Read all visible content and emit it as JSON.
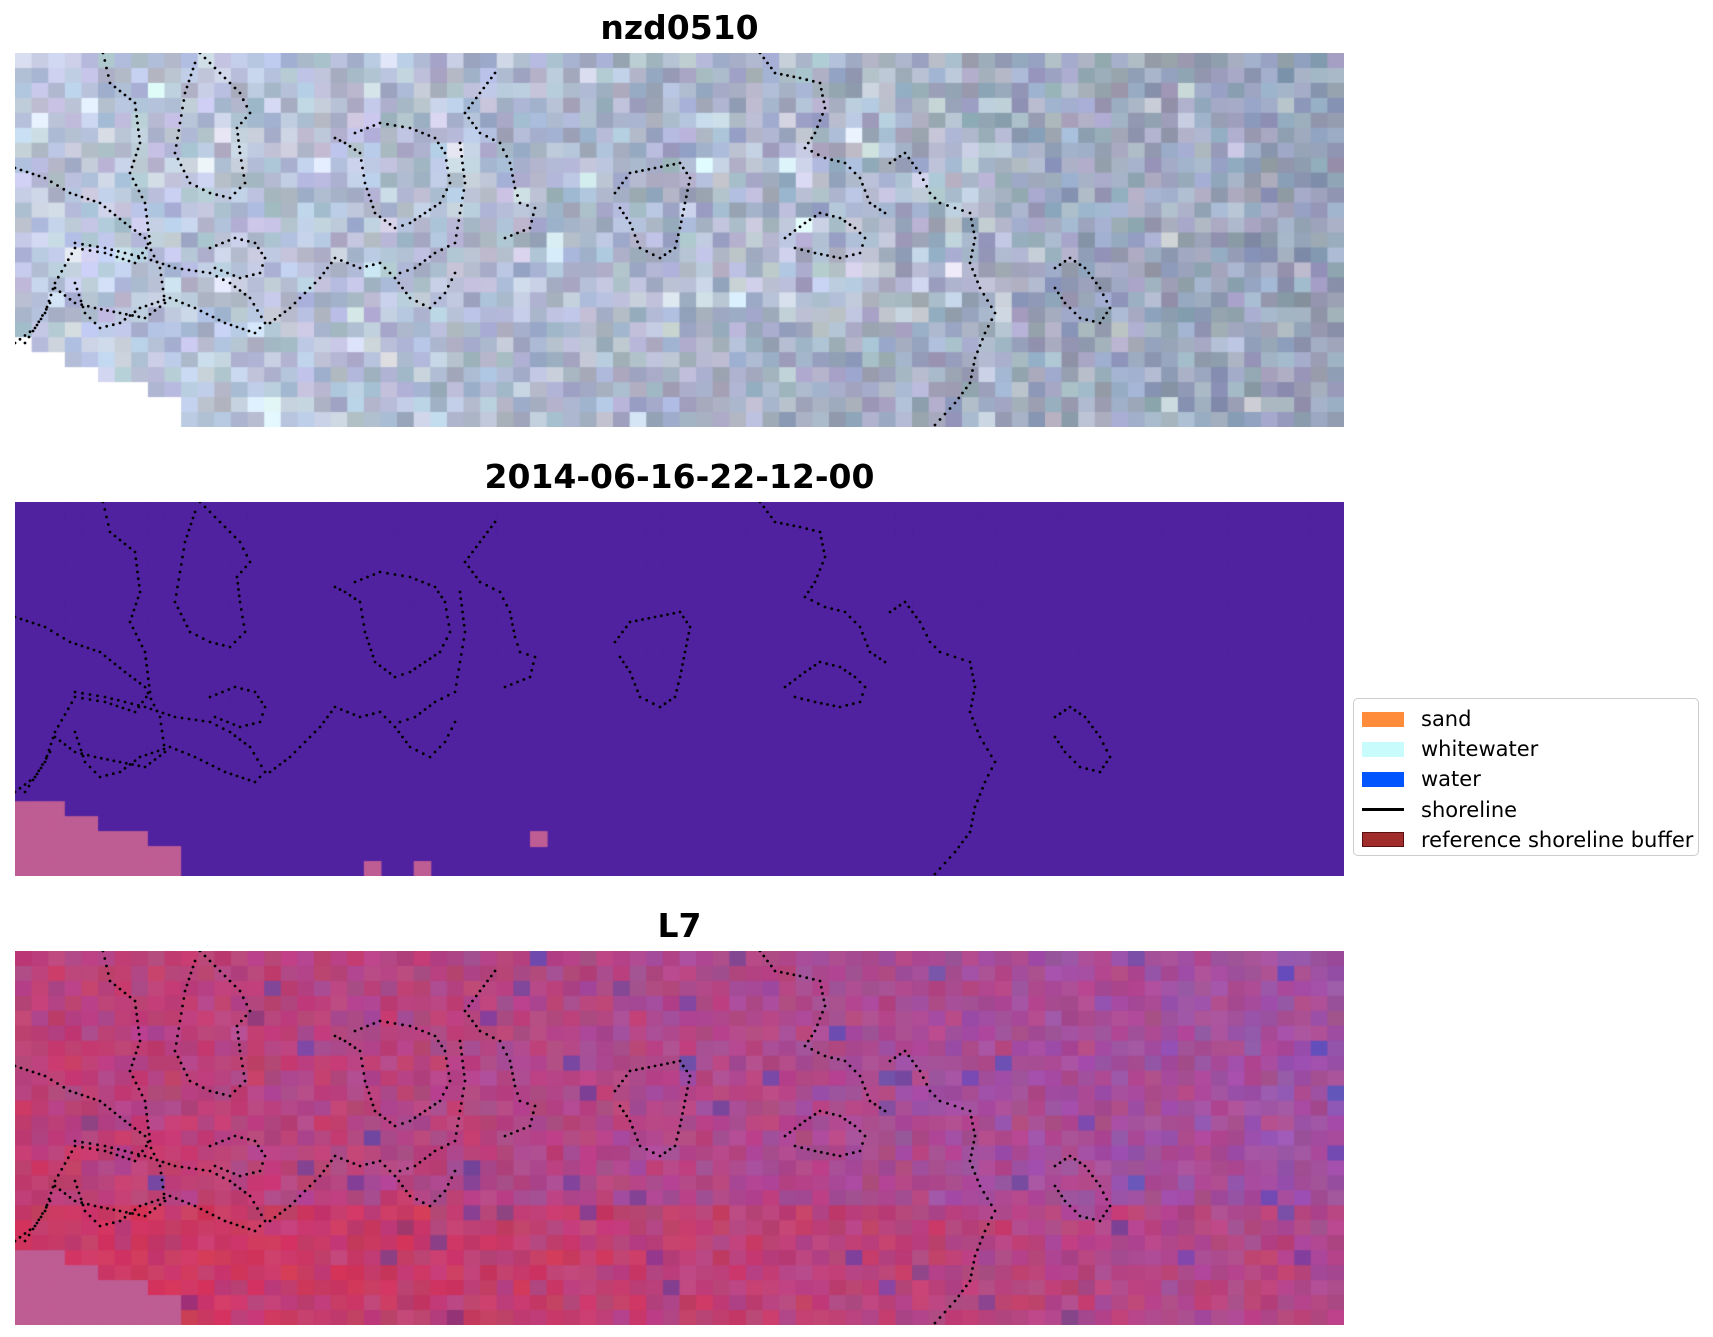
{
  "panels": [
    {
      "title": "nzd0510",
      "kind": "rgb"
    },
    {
      "title": "2014-06-16-22-12-00",
      "kind": "classified"
    },
    {
      "title": "L7",
      "kind": "falsecolor"
    }
  ],
  "legend": {
    "items": [
      {
        "label": "sand",
        "kind": "patch",
        "color": "#ff8c3a"
      },
      {
        "label": "whitewater",
        "kind": "patch",
        "color": "#c8fcfc"
      },
      {
        "label": "water",
        "kind": "patch",
        "color": "#0055ff"
      },
      {
        "label": "shoreline",
        "kind": "line",
        "color": "#000000"
      },
      {
        "label": "reference shoreline buffer",
        "kind": "patch",
        "color": "#a02c2c"
      }
    ]
  },
  "colors": {
    "classified_background": "#5022a0",
    "nodata_pink": "#be5c94",
    "shoreline_dots": "#000000"
  }
}
